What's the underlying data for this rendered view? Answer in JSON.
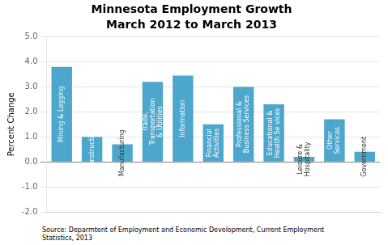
{
  "chart_data": {
    "type": "bar",
    "title": "Minnesota Employment Growth",
    "subtitle": "March 2012 to March 2013",
    "categories": [
      "Mining & Logging",
      "Construction",
      "Manufacturing",
      "Trade,\nTransportation\n& Utilities",
      "Information",
      "Financial\nActivities",
      "Professional &\nBusiness Se⁠rvices",
      "Educational &\nHealth Se⁠⁠ vices",
      "Leisure &\nHospitality",
      "Other\nServices",
      "Government"
    ],
    "values": [
      3.8,
      1.0,
      0.7,
      3.2,
      3.45,
      1.5,
      3.0,
      2.3,
      0.2,
      1.7,
      0.4
    ],
    "color": "#4da6cc",
    "ylabel": "Percent Change",
    "ylim": [
      -2.0,
      5.0
    ],
    "yticks": [
      {
        "value": -2.0,
        "label": "-2.0"
      },
      {
        "value": -1.0,
        "label": "-1.0"
      },
      {
        "value": 0.0,
        "label": "0.0"
      },
      {
        "value": 1.0,
        "label": "1.0"
      },
      {
        "value": 2.0,
        "label": "2.0"
      },
      {
        "value": 3.0,
        "label": "3.0"
      },
      {
        "value": 4.0,
        "label": "4.0"
      },
      {
        "value": 5.0,
        "label": "5.0"
      }
    ],
    "source": "Source: Deparmtent of Employment and Economic Development, Current Employment\nStatistics,  2013",
    "grid": true,
    "tick_labels": "y"
  }
}
